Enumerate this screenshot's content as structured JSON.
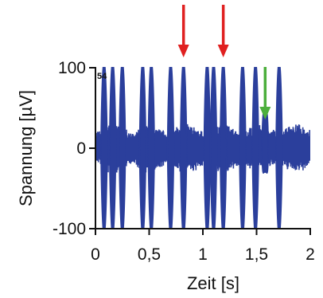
{
  "chart_data": {
    "type": "line",
    "panel_label": "54",
    "xlabel": "Zeit  [s]",
    "ylabel": "Spannung [µV]",
    "xlim": [
      0,
      2
    ],
    "ylim": [
      -100,
      100
    ],
    "x_ticks": [
      {
        "value": 0,
        "label": "0"
      },
      {
        "value": 0.5,
        "label": "0,5"
      },
      {
        "value": 1,
        "label": "1"
      },
      {
        "value": 1.5,
        "label": "1,5"
      },
      {
        "value": 2,
        "label": "2"
      }
    ],
    "y_ticks": [
      {
        "value": 100,
        "label": "100"
      },
      {
        "value": 0,
        "label": "0"
      },
      {
        "value": -100,
        "label": "-100"
      }
    ],
    "grid": false,
    "series_color": "#2b3f9c",
    "baseline_noise_amplitude": 25,
    "spikes": [
      {
        "t": 0.08,
        "amplitude": 110
      },
      {
        "t": 0.16,
        "amplitude": 110
      },
      {
        "t": 0.25,
        "amplitude": 110
      },
      {
        "t": 0.44,
        "amplitude": 110
      },
      {
        "t": 0.52,
        "amplitude": 110
      },
      {
        "t": 0.7,
        "amplitude": 110
      },
      {
        "t": 0.82,
        "amplitude": 110
      },
      {
        "t": 1.04,
        "amplitude": 110
      },
      {
        "t": 1.1,
        "amplitude": 110
      },
      {
        "t": 1.19,
        "amplitude": 110
      },
      {
        "t": 1.37,
        "amplitude": 110
      },
      {
        "t": 1.49,
        "amplitude": 110
      },
      {
        "t": 1.58,
        "amplitude": 50
      },
      {
        "t": 1.71,
        "amplitude": 110
      }
    ],
    "annotations": [
      {
        "type": "arrow",
        "x": 0.82,
        "color": "#e02020",
        "target": "spike"
      },
      {
        "type": "arrow",
        "x": 1.19,
        "color": "#e02020",
        "target": "spike"
      },
      {
        "type": "arrow",
        "x": 1.58,
        "color": "#4caf3c",
        "target": "small spike"
      }
    ]
  }
}
